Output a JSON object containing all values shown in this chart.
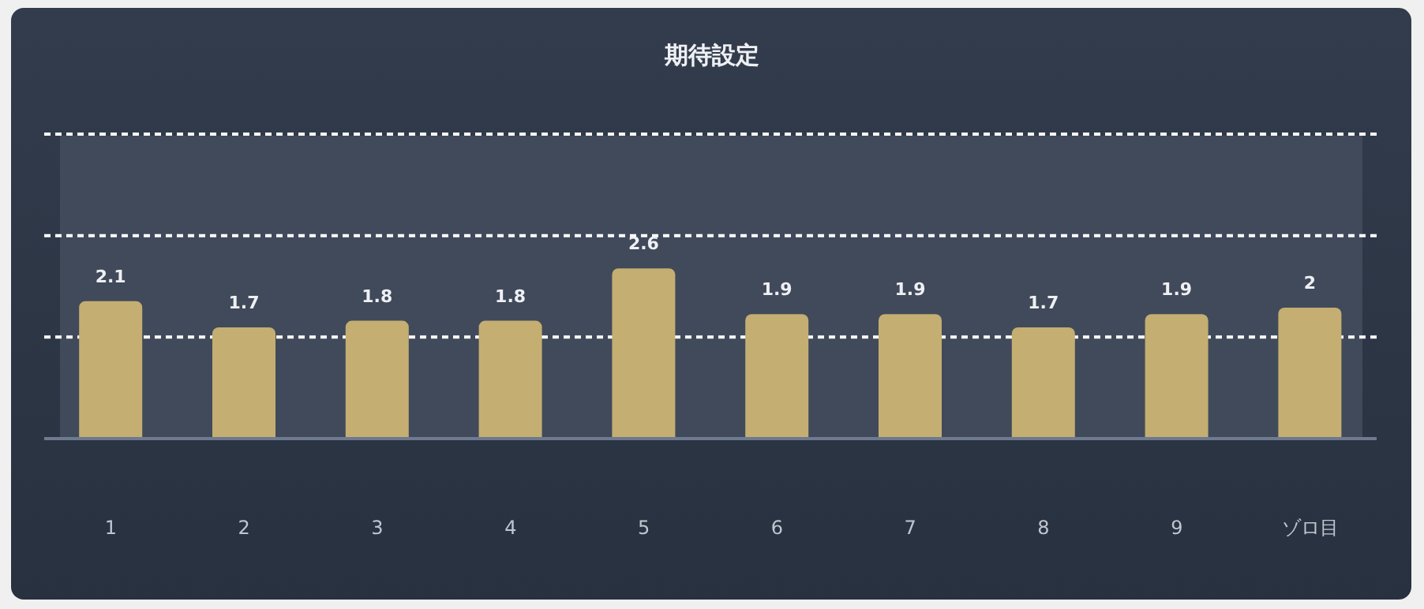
{
  "chart_data": {
    "type": "bar",
    "title": "期待設定",
    "categories": [
      "1",
      "2",
      "3",
      "4",
      "5",
      "6",
      "7",
      "8",
      "9",
      "ゾロ目"
    ],
    "values": [
      2.1,
      1.7,
      1.8,
      1.8,
      2.6,
      1.9,
      1.9,
      1.7,
      1.9,
      2
    ],
    "color": "#c4ae72",
    "ylim": [
      0,
      4.65
    ],
    "yticks": [
      {
        "value": 0,
        "label": null
      },
      {
        "value": 1.55,
        "label": null
      },
      {
        "value": 3.1,
        "label": null
      },
      {
        "value": 4.65,
        "label": null
      }
    ],
    "tick_labels": "x",
    "grid": "y",
    "data_labels": true
  }
}
